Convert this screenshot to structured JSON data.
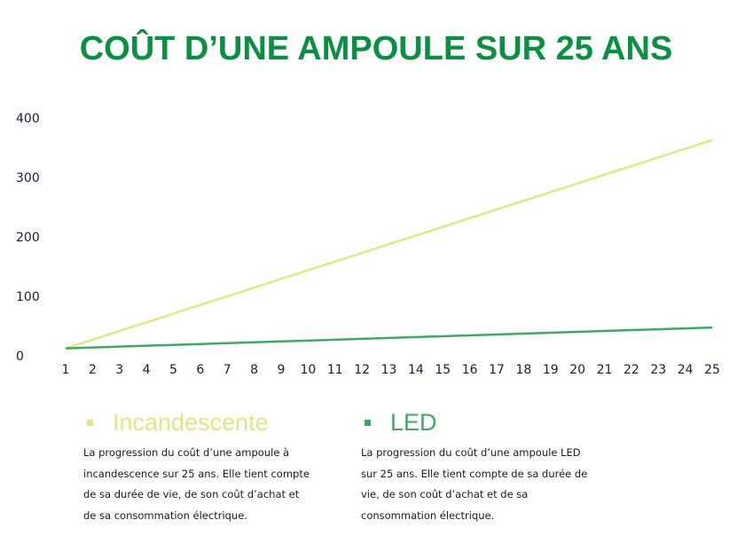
{
  "chart_data": {
    "type": "line",
    "title": "COÛT D’UNE AMPOULE SUR 25 ANS",
    "x": [
      1,
      2,
      3,
      4,
      5,
      6,
      7,
      8,
      9,
      10,
      11,
      12,
      13,
      14,
      15,
      16,
      17,
      18,
      19,
      20,
      21,
      22,
      23,
      24,
      25
    ],
    "series": [
      {
        "name": "Incandescente",
        "color": "#e3e582",
        "description": "La progression du coût d’une ampoule à incandescence sur 25 ans. Elle tient compte de sa durée de vie, de son coût d’achat et de sa consommation électrique.",
        "values": [
          14,
          28.6,
          43.2,
          57.8,
          72.4,
          87,
          101.6,
          116.2,
          130.8,
          145.4,
          160,
          174.6,
          189.2,
          203.8,
          218.4,
          233,
          247.6,
          262.2,
          276.8,
          291.4,
          306,
          320.6,
          335.2,
          349.8,
          364.4
        ]
      },
      {
        "name": "LED",
        "color": "#3daa64",
        "description": "La progression du coût d’une ampoule LED sur 25 ans. Elle tient compte de sa durée de vie, de son coût d’achat et de sa consommation électrique.",
        "values": [
          14,
          15.5,
          16.9,
          18.4,
          19.8,
          21.3,
          22.8,
          24.2,
          25.7,
          27.1,
          28.6,
          30.1,
          31.5,
          33,
          34.4,
          35.9,
          37.4,
          38.8,
          40.3,
          41.7,
          43.2,
          44.7,
          46.1,
          47.6,
          49
        ]
      }
    ],
    "ylim": [
      0,
      400
    ],
    "yticks": [
      0,
      100,
      200,
      300,
      400
    ],
    "grid": false
  }
}
